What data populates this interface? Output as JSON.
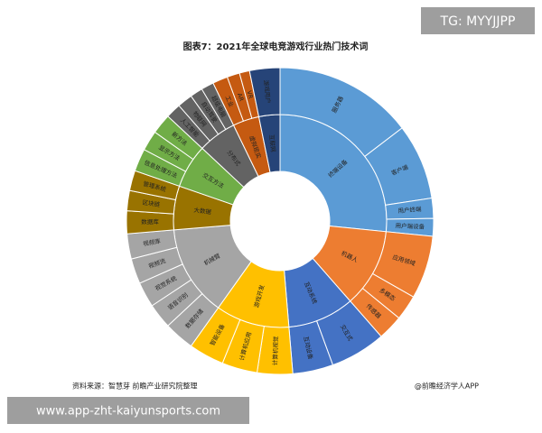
{
  "chart_data": {
    "type": "sunburst",
    "title": "图表7：2021年全球电竞游戏行业热门技术词",
    "source": "资料来源：智慧芽 前瞻产业研究院整理",
    "credit": "@前瞻经济学人APP",
    "categories": [
      {
        "name": "终端设备",
        "color": "#5b9bd5",
        "value": 100,
        "children": [
          {
            "name": "服务器",
            "value": 55
          },
          {
            "name": "客户端",
            "value": 30
          },
          {
            "name": "用户终端",
            "value": 8
          },
          {
            "name": "用户端设备",
            "value": 7
          }
        ]
      },
      {
        "name": "机器人",
        "color": "#ed7d31",
        "value": 45,
        "children": [
          {
            "name": "应用领域",
            "value": 25
          },
          {
            "name": "多模态",
            "value": 10
          },
          {
            "name": "传感器",
            "value": 10
          }
        ]
      },
      {
        "name": "互动系统",
        "color": "#4472c4",
        "value": 38,
        "children": [
          {
            "name": "交互式",
            "value": 22
          },
          {
            "name": "互动设备",
            "value": 16
          }
        ]
      },
      {
        "name": "游戏开发",
        "color": "#ffc000",
        "value": 42,
        "children": [
          {
            "name": "计算机视觉",
            "value": 14
          },
          {
            "name": "计算机应用",
            "value": 14
          },
          {
            "name": "智能设备",
            "value": 14
          }
        ]
      },
      {
        "name": "机械臂",
        "color": "#a5a5a5",
        "value": 52,
        "children": [
          {
            "name": "数据存储",
            "value": 12
          },
          {
            "name": "语音识别",
            "value": 10
          },
          {
            "name": "视觉系统",
            "value": 10
          },
          {
            "name": "视频流",
            "value": 10
          },
          {
            "name": "视频库",
            "value": 10
          }
        ]
      },
      {
        "name": "大数据",
        "color": "#997300",
        "value": 25,
        "children": [
          {
            "name": "数据库",
            "value": 9
          },
          {
            "name": "区块链",
            "value": 8
          },
          {
            "name": "管理系统",
            "value": 8
          }
        ]
      },
      {
        "name": "交互方法",
        "color": "#70ad47",
        "value": 25,
        "children": [
          {
            "name": "信息处理方法",
            "value": 9
          },
          {
            "name": "显示方法",
            "value": 8
          },
          {
            "name": "新方法",
            "value": 8
          }
        ]
      },
      {
        "name": "分布式",
        "color": "#636363",
        "value": 22,
        "children": [
          {
            "name": "人工智能",
            "value": 6
          },
          {
            "name": "物联网",
            "value": 6
          },
          {
            "name": "自动驾驶",
            "value": 5
          },
          {
            "name": "超级电脑",
            "value": 5
          }
        ]
      },
      {
        "name": "虚拟现实",
        "color": "#c55a11",
        "value": 15,
        "children": [
          {
            "name": "工业",
            "value": 6
          },
          {
            "name": "AR",
            "value": 5
          },
          {
            "name": "VR",
            "value": 4
          }
        ]
      },
      {
        "name": "互联网",
        "color": "#264478",
        "value": 12,
        "children": [
          {
            "name": "游戏用户",
            "value": 12
          }
        ]
      }
    ]
  },
  "overlays": {
    "top_right": "TG: MYYJJPP",
    "bottom_left": "www.app-zht-kaiyunsports.com"
  }
}
